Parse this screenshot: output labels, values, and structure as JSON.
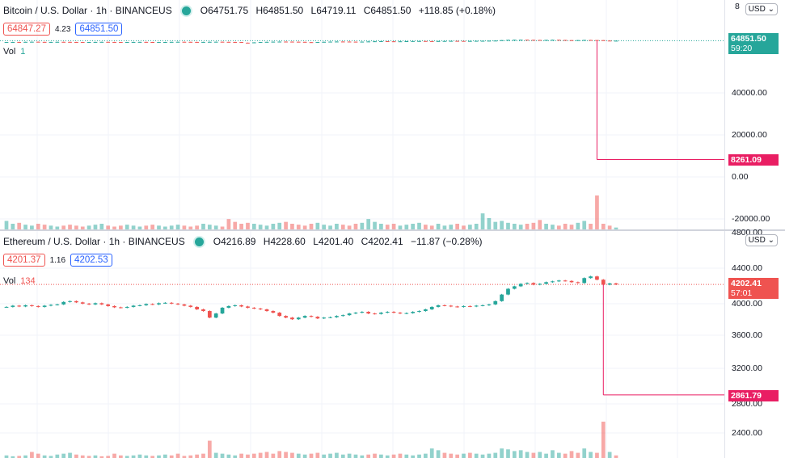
{
  "btc": {
    "title": "Bitcoin / U.S. Dollar · 1h · BINANCEUS",
    "ohlc": {
      "o": "O64751.75",
      "h": "H64851.50",
      "l": "L64719.11",
      "c": "C64851.50",
      "chg": "+118.85 (+0.18%)"
    },
    "bid": "64847.27",
    "spread": "4.23",
    "ask": "64851.50",
    "vol_label": "Vol",
    "vol_value": "1",
    "currency": "USD",
    "axis_top_partial": "8",
    "price_tag": "64851.50",
    "countdown": "59:20",
    "wick_tag": "8261.09",
    "chart_data": {
      "type": "candlestick",
      "yticks": [
        40000,
        20000,
        0,
        -20000
      ],
      "ytick_labels": [
        "40000.00",
        "20000.00",
        "0.00",
        "-20000.00"
      ],
      "last_price": 64851.5,
      "spike_low": 8261.09,
      "closes": [
        64200,
        64250,
        64180,
        64300,
        64350,
        64280,
        64220,
        64260,
        64310,
        64290,
        64240,
        64200,
        64180,
        64230,
        64270,
        64300,
        64250,
        64210,
        64190,
        64220,
        64260,
        64280,
        64230,
        64170,
        64200,
        64240,
        64290,
        64330,
        64300,
        64260,
        64230,
        64270,
        64320,
        64350,
        64300,
        64250,
        64210,
        63900,
        63800,
        64050,
        64200,
        64300,
        64380,
        64420,
        64400,
        64360,
        64300,
        64150,
        64100,
        64200,
        64320,
        64400,
        64450,
        64430,
        64380,
        64350,
        64400,
        64480,
        64560,
        64600,
        64550,
        64500,
        64540,
        64620,
        64680,
        64700,
        64650,
        64620,
        64680,
        64720,
        64760,
        64740,
        64700,
        64730,
        64780,
        64800,
        64850,
        64900,
        65100,
        65250,
        65300,
        65320,
        65250,
        65200,
        65150,
        65220,
        65280,
        65200,
        65100,
        65050,
        65120,
        65200,
        65150,
        65100,
        64900,
        64850,
        64851.5
      ],
      "volumes": [
        0.45,
        0.3,
        0.35,
        0.25,
        0.2,
        0.3,
        0.25,
        0.2,
        0.15,
        0.2,
        0.25,
        0.2,
        0.15,
        0.2,
        0.25,
        0.3,
        0.2,
        0.15,
        0.2,
        0.25,
        0.2,
        0.15,
        0.2,
        0.25,
        0.2,
        0.15,
        0.2,
        0.25,
        0.2,
        0.15,
        0.2,
        0.3,
        0.25,
        0.2,
        0.15,
        0.55,
        0.4,
        0.3,
        0.35,
        0.3,
        0.25,
        0.2,
        0.3,
        0.35,
        0.4,
        0.3,
        0.25,
        0.2,
        0.3,
        0.35,
        0.25,
        0.2,
        0.3,
        0.25,
        0.2,
        0.3,
        0.35,
        0.55,
        0.4,
        0.3,
        0.25,
        0.3,
        0.2,
        0.25,
        0.3,
        0.35,
        0.25,
        0.2,
        0.3,
        0.2,
        0.25,
        0.3,
        0.2,
        0.25,
        0.3,
        0.85,
        0.6,
        0.4,
        0.45,
        0.35,
        0.3,
        0.25,
        0.3,
        0.35,
        0.5,
        0.3,
        0.25,
        0.2,
        0.3,
        0.25,
        0.35,
        0.45,
        0.3,
        1.8,
        0.3,
        0.2,
        0.1
      ]
    }
  },
  "eth": {
    "title": "Ethereum / U.S. Dollar · 1h · BINANCEUS",
    "ohlc": {
      "o": "O4216.89",
      "h": "H4228.60",
      "l": "L4201.40",
      "c": "C4202.41",
      "chg": "−11.87 (−0.28%)"
    },
    "bid": "4201.37",
    "spread": "1.16",
    "ask": "4202.53",
    "vol_label": "Vol",
    "vol_value": "134",
    "currency": "USD",
    "axis_top_partial": "4800.00",
    "price_tag": "4202.41",
    "countdown": "57:01",
    "partial_tick": "4000.00",
    "wick_tag": "2861.79",
    "partial_tick_low": "2800.00",
    "chart_data": {
      "type": "candlestick",
      "yticks": [
        4400,
        3600,
        3200,
        2400
      ],
      "ytick_labels": [
        "4400.00",
        "3600.00",
        "3200.00",
        "2400.00"
      ],
      "last_price": 4202.41,
      "spike_low": 2861.79,
      "closes": [
        3930,
        3945,
        3935,
        3950,
        3940,
        3930,
        3945,
        3955,
        3960,
        3990,
        4000,
        3985,
        3970,
        3960,
        3975,
        3960,
        3940,
        3925,
        3920,
        3930,
        3945,
        3950,
        3965,
        3960,
        3975,
        3980,
        3970,
        3960,
        3945,
        3930,
        3900,
        3880,
        3800,
        3850,
        3920,
        3940,
        3950,
        3935,
        3920,
        3910,
        3900,
        3880,
        3860,
        3820,
        3800,
        3780,
        3800,
        3820,
        3810,
        3790,
        3800,
        3805,
        3820,
        3830,
        3850,
        3860,
        3870,
        3850,
        3845,
        3860,
        3870,
        3860,
        3850,
        3855,
        3870,
        3880,
        3900,
        3930,
        3950,
        3945,
        3935,
        3930,
        3940,
        3935,
        3945,
        3950,
        3960,
        4000,
        4080,
        4150,
        4180,
        4210,
        4220,
        4200,
        4210,
        4230,
        4240,
        4250,
        4245,
        4230,
        4220,
        4280,
        4300,
        4260,
        4200,
        4215,
        4202.41
      ],
      "volumes": [
        0.15,
        0.1,
        0.12,
        0.15,
        0.35,
        0.25,
        0.15,
        0.12,
        0.2,
        0.25,
        0.3,
        0.2,
        0.15,
        0.12,
        0.15,
        0.1,
        0.12,
        0.25,
        0.15,
        0.12,
        0.15,
        0.2,
        0.15,
        0.12,
        0.15,
        0.2,
        0.15,
        0.25,
        0.12,
        0.15,
        0.2,
        0.25,
        1.0,
        0.3,
        0.25,
        0.2,
        0.15,
        0.25,
        0.2,
        0.25,
        0.3,
        0.35,
        0.25,
        0.4,
        0.35,
        0.3,
        0.25,
        0.2,
        0.25,
        0.3,
        0.2,
        0.25,
        0.3,
        0.2,
        0.25,
        0.2,
        0.15,
        0.2,
        0.25,
        0.2,
        0.15,
        0.2,
        0.25,
        0.2,
        0.15,
        0.2,
        0.25,
        0.55,
        0.45,
        0.3,
        0.25,
        0.2,
        0.25,
        0.3,
        0.25,
        0.2,
        0.25,
        0.3,
        0.55,
        0.5,
        0.4,
        0.45,
        0.35,
        0.3,
        0.35,
        0.25,
        0.45,
        0.3,
        0.25,
        0.4,
        0.3,
        0.55,
        0.35,
        0.3,
        2.1,
        0.35,
        0.15
      ]
    }
  }
}
